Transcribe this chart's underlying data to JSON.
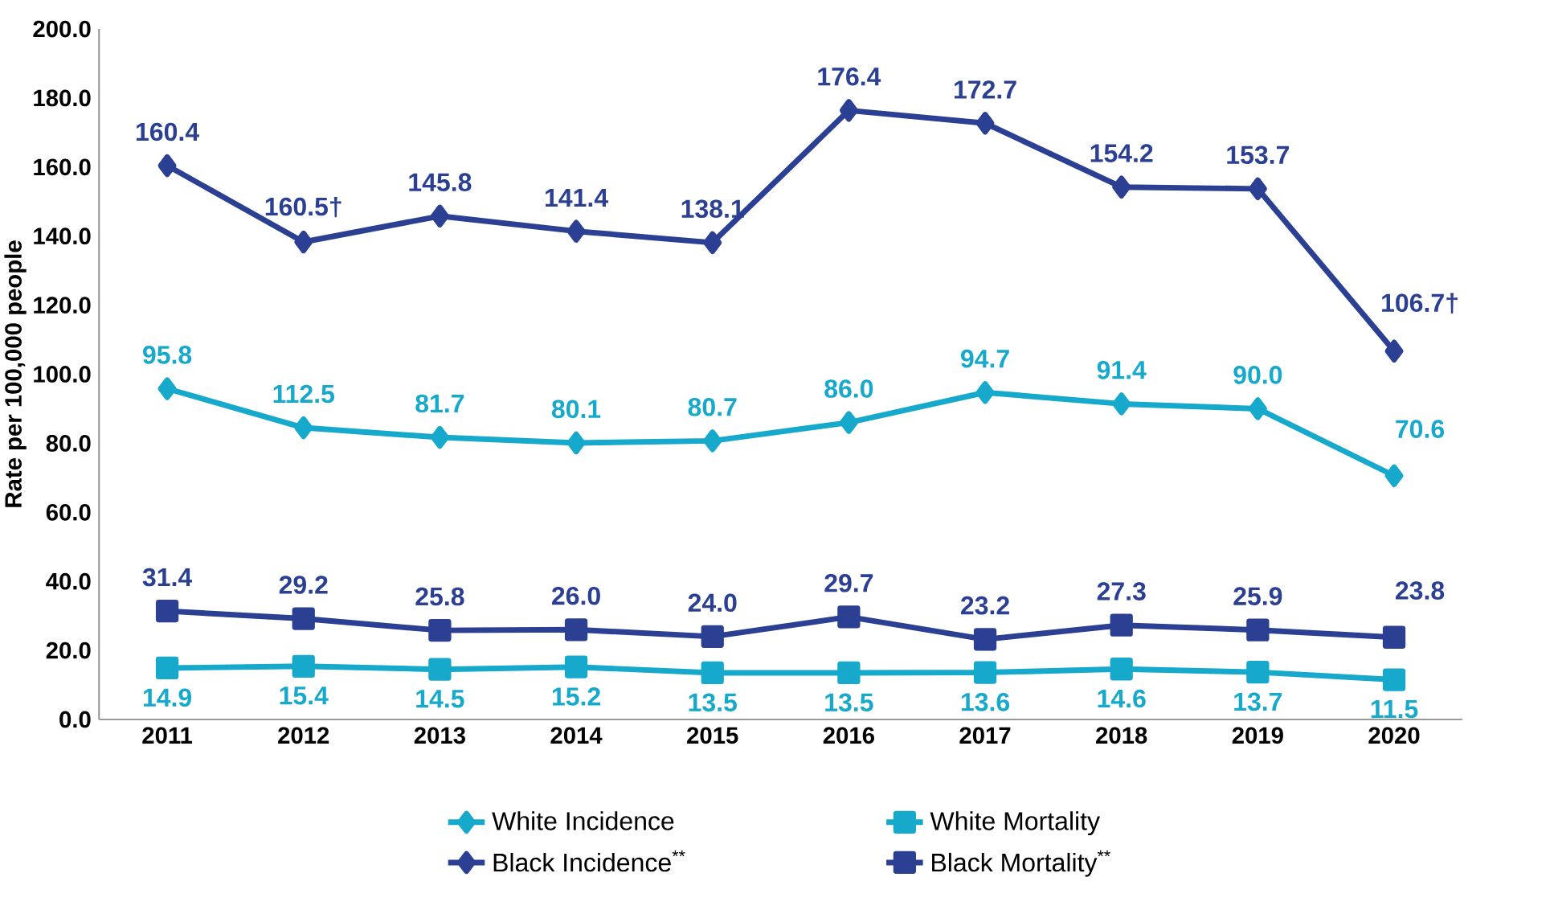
{
  "chart_data": {
    "type": "line",
    "ylabel": "Rate per 100,000 people",
    "categories": [
      "2011",
      "2012",
      "2013",
      "2014",
      "2015",
      "2016",
      "2017",
      "2018",
      "2019",
      "2020"
    ],
    "series": [
      {
        "name": "White Incidence",
        "color": "#17a9cc",
        "marker": "diamond",
        "values": [
          95.8,
          84.5,
          81.7,
          80.1,
          80.7,
          86.0,
          94.7,
          91.4,
          90.0,
          70.6
        ],
        "value_labels": [
          "95.8",
          null,
          "81.7",
          "80.1",
          "80.7",
          "86.0",
          "94.7",
          "91.4",
          "90.0",
          "70.6"
        ]
      },
      {
        "name": "White Mortality",
        "color": "#17a9cc",
        "marker": "square",
        "values": [
          14.9,
          15.4,
          14.5,
          15.2,
          13.5,
          13.5,
          13.6,
          14.6,
          13.7,
          11.5
        ],
        "value_labels": [
          "14.9",
          "15.4",
          "14.5",
          "15.2",
          "13.5",
          "13.5",
          "13.6",
          "14.6",
          "13.7",
          "11.5"
        ]
      },
      {
        "name": "Black Incidence$^{**}$",
        "color": "#2b3f93",
        "marker": "diamond",
        "values": [
          160.4,
          138.3,
          145.8,
          141.4,
          138.1,
          176.4,
          172.7,
          154.2,
          153.7,
          106.7
        ],
        "value_labels": [
          "160.4",
          null,
          "145.8",
          "141.4",
          "138.1",
          "176.4",
          "172.7",
          "154.2",
          "153.7",
          "106.7†"
        ]
      },
      {
        "name": "Black Mortality$^{**}$",
        "color": "#2b3f93",
        "marker": "square",
        "values": [
          31.4,
          29.2,
          25.8,
          26.0,
          24.0,
          29.7,
          23.2,
          27.3,
          25.9,
          23.8
        ],
        "value_labels": [
          "31.4",
          "29.2",
          "25.8",
          "26.0",
          "24.0",
          "29.7",
          "23.2",
          "27.3",
          "25.9",
          "23.8"
        ]
      }
    ],
    "ylim": [
      0,
      200
    ],
    "yticks": [
      {
        "value": 0,
        "label": "0.0"
      },
      {
        "value": 20,
        "label": "20.0"
      },
      {
        "value": 40,
        "label": "40.0"
      },
      {
        "value": 60,
        "label": "60.0"
      },
      {
        "value": 80,
        "label": "80.0"
      },
      {
        "value": 100,
        "label": "100.0"
      },
      {
        "value": 120,
        "label": "120.0"
      },
      {
        "value": 140,
        "label": "140.0"
      },
      {
        "value": 160,
        "label": "160.0"
      },
      {
        "value": 180,
        "label": "180.0"
      },
      {
        "value": 200,
        "label": "200.0"
      }
    ],
    "annotations": [
      {
        "text": "112.5",
        "x": "2012",
        "y": 84.5
      },
      {
        "text": "160.5†",
        "x": "2012",
        "y": 138.3
      }
    ],
    "grid": false,
    "legend": "bottom"
  }
}
